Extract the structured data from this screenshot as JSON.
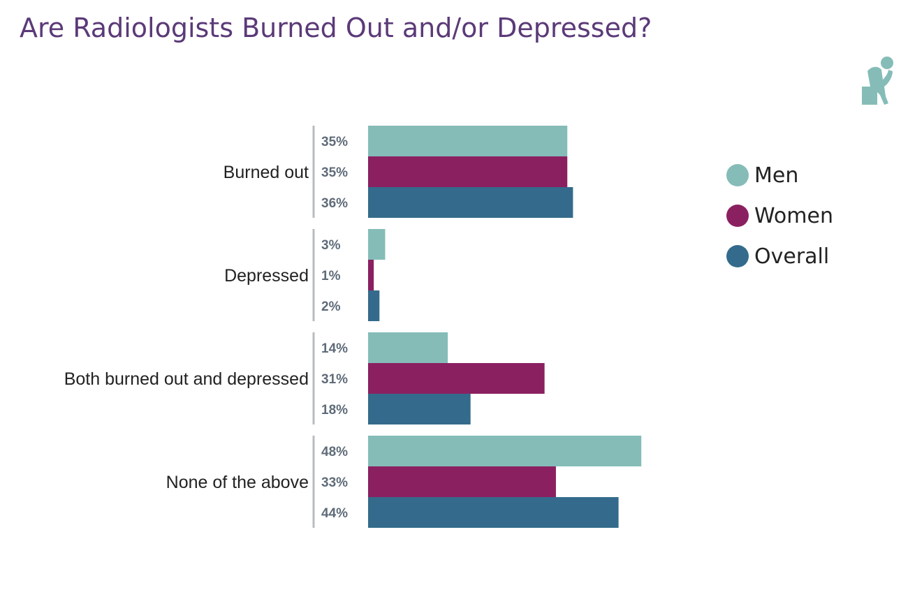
{
  "page_title": "Are Radiologists Burned Out and/or Depressed?",
  "icon": "thinking-person-icon",
  "colors": {
    "men": "#85bcb8",
    "women": "#8b2061",
    "overall": "#346b8c",
    "title": "#5b3a78",
    "divider": "#b8bcc2",
    "value_label": "#5f6b78"
  },
  "chart_data": {
    "type": "bar",
    "orientation": "horizontal",
    "title": "Are Radiologists Burned Out and/or Depressed?",
    "categories": [
      "Burned out",
      "Depressed",
      "Both burned out and depressed",
      "None of the above"
    ],
    "series": [
      {
        "name": "Men",
        "values": [
          35,
          3,
          14,
          48
        ],
        "labels": [
          "35%",
          "3%",
          "14%",
          "48%"
        ]
      },
      {
        "name": "Women",
        "values": [
          35,
          1,
          31,
          33
        ],
        "labels": [
          "35%",
          "1%",
          "31%",
          "33%"
        ]
      },
      {
        "name": "Overall",
        "values": [
          36,
          2,
          18,
          44
        ],
        "labels": [
          "36%",
          "2%",
          "18%",
          "44%"
        ]
      }
    ],
    "xlim": [
      0,
      48
    ],
    "grid": false,
    "legend": "right"
  },
  "legend": {
    "items": [
      {
        "label": "Men",
        "color": "#85bcb8"
      },
      {
        "label": "Women",
        "color": "#8b2061"
      },
      {
        "label": "Overall",
        "color": "#346b8c"
      }
    ]
  }
}
